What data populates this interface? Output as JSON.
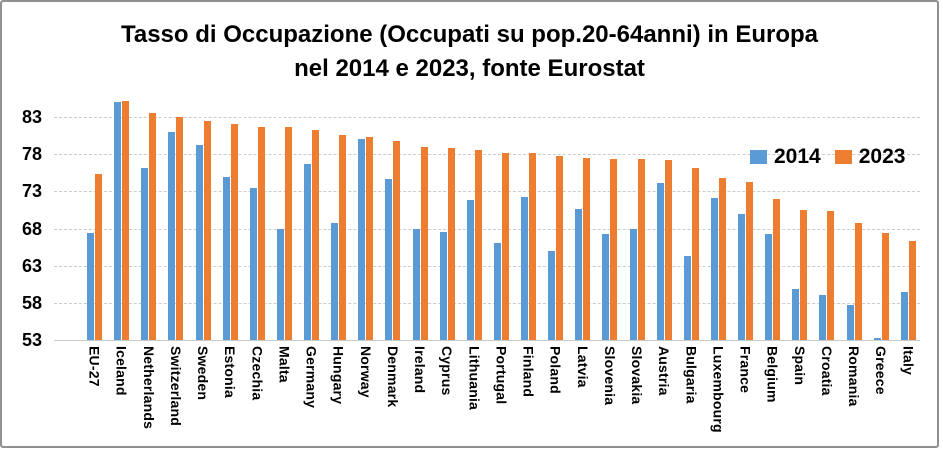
{
  "chart_data": {
    "type": "bar",
    "title_line1": "Tasso di Occupazione (Occupati su pop.20-64anni) in Europa",
    "title_line2": "nel 2014 e 2023, fonte Eurostat",
    "xlabel": "",
    "ylabel": "",
    "categories": [
      "EU-27",
      "Iceland",
      "Netherlands",
      "Switzerland",
      "Sweden",
      "Estonia",
      "Czechia",
      "Malta",
      "Germany",
      "Hungary",
      "Norway",
      "Denmark",
      "Ireland",
      "Cyprus",
      "Lithuania",
      "Portugal",
      "Finland",
      "Poland",
      "Latvia",
      "Slovenia",
      "Slovakia",
      "Austria",
      "Bulgaria",
      "Luxembourg",
      "France",
      "Belgium",
      "Spain",
      "Croatia",
      "Romania",
      "Greece",
      "Italy"
    ],
    "series": [
      {
        "name": "2014",
        "color": "#5B9BD5",
        "values": [
          67.4,
          85.0,
          76.2,
          81.0,
          79.2,
          74.9,
          73.5,
          67.9,
          76.7,
          68.8,
          80.1,
          74.7,
          68.0,
          67.6,
          71.8,
          66.1,
          72.3,
          65.0,
          70.6,
          67.3,
          67.9,
          74.1,
          64.3,
          72.1,
          69.9,
          67.3,
          59.9,
          59.1,
          57.7,
          53.3,
          59.4
        ]
      },
      {
        "name": "2023",
        "color": "#ED7D31",
        "values": [
          75.3,
          85.1,
          83.5,
          83.0,
          82.5,
          82.1,
          81.7,
          81.6,
          81.2,
          80.6,
          80.3,
          79.8,
          79.0,
          78.8,
          78.5,
          78.2,
          78.1,
          77.8,
          77.5,
          77.4,
          77.4,
          77.2,
          76.1,
          74.8,
          74.3,
          72.0,
          70.5,
          70.4,
          68.7,
          67.4,
          66.3
        ]
      }
    ],
    "ylim": [
      53,
      86
    ],
    "yticks": [
      53,
      58,
      63,
      68,
      73,
      78,
      83
    ],
    "grid": "horizontal dashed",
    "legend_position": "inside plot, upper right",
    "x_label_rotation": "vertical"
  }
}
